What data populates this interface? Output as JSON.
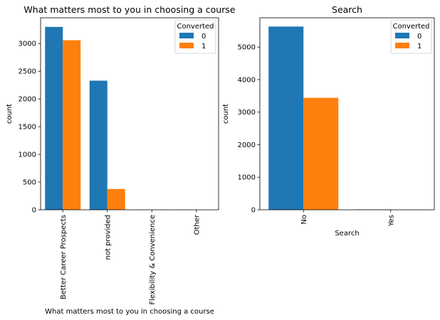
{
  "chart_data": [
    {
      "type": "bar",
      "title": "What matters most to you in choosing a course",
      "xlabel": "What matters most to you in choosing a course",
      "ylabel": "count",
      "categories": [
        "Better Career Prospects",
        "not provided",
        "Flexibility & Convenience",
        "Other"
      ],
      "series": [
        {
          "name": "0",
          "values": [
            3300,
            2330,
            1,
            1
          ],
          "color": "#1f77b4"
        },
        {
          "name": "1",
          "values": [
            3060,
            375,
            1,
            0
          ],
          "color": "#ff7f0e"
        }
      ],
      "ylim": [
        0,
        3465
      ],
      "yticks": [
        0,
        500,
        1000,
        1500,
        2000,
        2500,
        3000
      ],
      "legend": {
        "title": "Converted",
        "placement": "top-right"
      },
      "grid": false
    },
    {
      "type": "bar",
      "title": "Search",
      "xlabel": "Search",
      "ylabel": "count",
      "categories": [
        "No",
        "Yes"
      ],
      "series": [
        {
          "name": "0",
          "values": [
            5630,
            12
          ],
          "color": "#1f77b4"
        },
        {
          "name": "1",
          "values": [
            3440,
            2
          ],
          "color": "#ff7f0e"
        }
      ],
      "ylim": [
        0,
        5900
      ],
      "yticks": [
        0,
        1000,
        2000,
        3000,
        4000,
        5000
      ],
      "legend": {
        "title": "Converted",
        "placement": "top-right"
      },
      "grid": false
    }
  ]
}
